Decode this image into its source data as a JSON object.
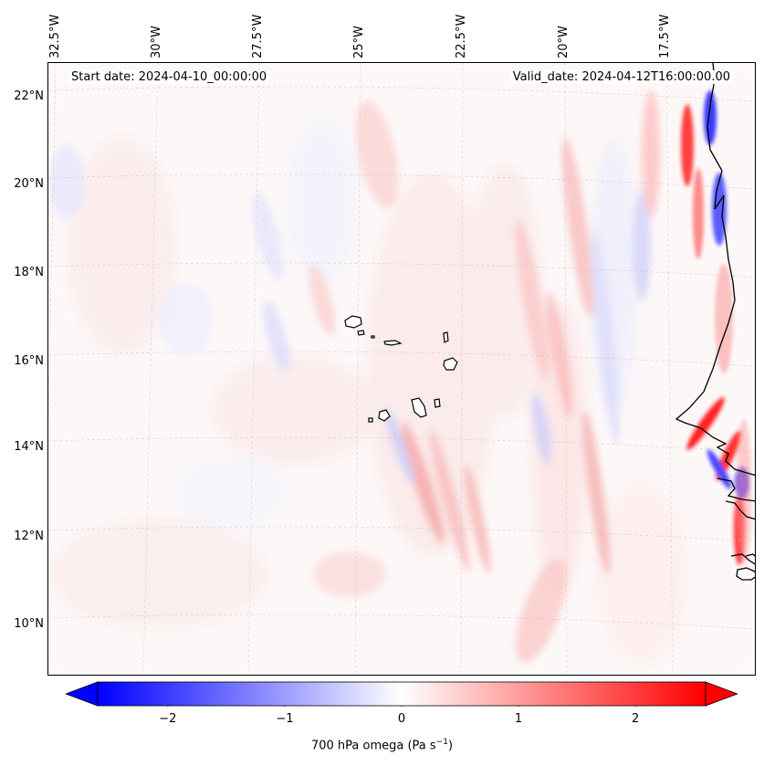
{
  "map": {
    "start_date": "Start date: 2024-04-10_00:00:00",
    "valid_date": "Valid_date: 2024-04-12T16:00:00.00",
    "longitude_labels": [
      "32.5°W",
      "30°W",
      "27.5°W",
      "25°W",
      "22.5°W",
      "20°W",
      "17.5°W"
    ],
    "latitude_labels": [
      "22°N",
      "20°N",
      "18°N",
      "16°N",
      "14°N",
      "12°N",
      "10°N"
    ],
    "features": {
      "islands": "Cape Verde Islands",
      "coastline": "West African coast"
    }
  },
  "colorbar": {
    "title": "700 hPa omega (Pa s",
    "title_superscript": "−1",
    "title_close": ")",
    "tick_labels": [
      "−2",
      "−1",
      "0",
      "1",
      "2"
    ],
    "tick_values": [
      -2,
      -1,
      0,
      1,
      2
    ],
    "range": [
      -2.6,
      2.6
    ],
    "colormap": "bwr",
    "colors": {
      "low": "#0000ff",
      "mid": "#ffffff",
      "high": "#ff0000"
    },
    "extend": "both"
  }
}
